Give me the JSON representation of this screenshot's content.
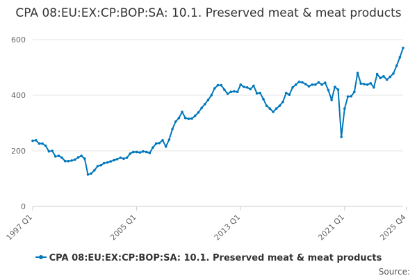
{
  "chart_data": {
    "type": "line",
    "title": "CPA 08:EU:EX:CP:BOP:SA: 10.1. Preserved meat & meat products",
    "xlabel": "",
    "ylabel": "",
    "ylim": [
      0,
      600
    ],
    "yticks": [
      0,
      200,
      400,
      600
    ],
    "x_tick_labels": [
      "1997 Q1",
      "2005 Q1",
      "2013 Q1",
      "2021 Q1",
      "2025 Q4"
    ],
    "grid": true,
    "legend_position": "bottom",
    "credits": "Source:",
    "x_start": "1997 Q1",
    "x_end": "2025 Q4",
    "series": [
      {
        "name": "CPA 08:EU:EX:CP:BOP:SA: 10.1. Preserved meat & meat products",
        "color": "#0077bb",
        "values": [
          236,
          238,
          226,
          226,
          218,
          198,
          200,
          180,
          182,
          175,
          163,
          163,
          165,
          168,
          176,
          182,
          172,
          115,
          118,
          130,
          145,
          148,
          156,
          158,
          162,
          166,
          170,
          175,
          172,
          175,
          190,
          196,
          196,
          194,
          198,
          196,
          192,
          212,
          226,
          228,
          238,
          215,
          240,
          278,
          305,
          318,
          340,
          318,
          315,
          316,
          326,
          338,
          354,
          368,
          383,
          400,
          425,
          436,
          436,
          420,
          405,
          412,
          414,
          412,
          438,
          430,
          428,
          422,
          434,
          407,
          408,
          386,
          362,
          352,
          340,
          352,
          362,
          376,
          408,
          402,
          428,
          438,
          448,
          446,
          440,
          432,
          438,
          438,
          446,
          438,
          445,
          418,
          383,
          430,
          420,
          250,
          352,
          395,
          396,
          412,
          480,
          442,
          440,
          438,
          443,
          428,
          476,
          462,
          468,
          456,
          466,
          478,
          506,
          536,
          570
        ]
      }
    ]
  }
}
